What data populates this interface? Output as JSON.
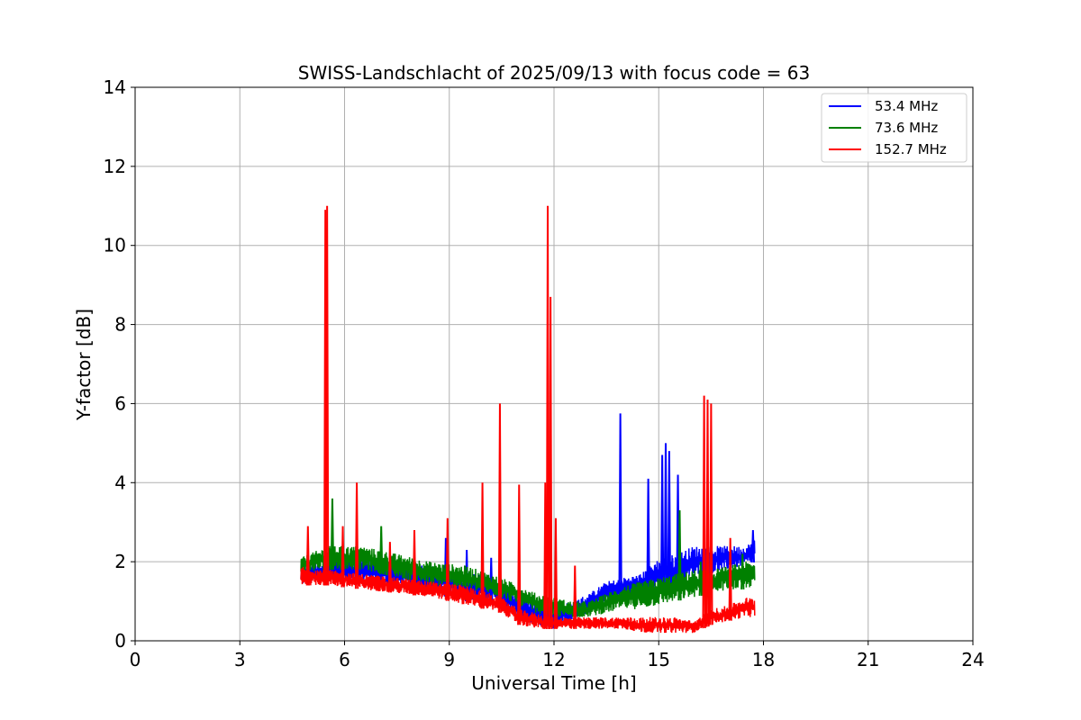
{
  "chart_data": {
    "type": "line",
    "title": "SWISS-Landschlacht of 2025/09/13 with focus code = 63",
    "xlabel": "Universal Time [h]",
    "ylabel": "Y-factor [dB]",
    "xlim": [
      0,
      24
    ],
    "ylim": [
      0,
      14
    ],
    "xticks": [
      0,
      3,
      6,
      9,
      12,
      15,
      18,
      21,
      24
    ],
    "yticks": [
      0,
      2,
      4,
      6,
      8,
      10,
      12,
      14
    ],
    "grid": true,
    "legend_position": "top-right",
    "series": [
      {
        "name": " 53.4 MHz",
        "color": "#0000ff",
        "band_x": [
          4.75,
          5.5,
          6.5,
          7.5,
          8.5,
          9.5,
          10.5,
          11.0,
          11.5,
          12.0,
          12.5,
          13.0,
          13.5,
          14.0,
          14.5,
          15.0,
          15.5,
          16.0,
          16.5,
          17.0,
          17.5,
          17.75
        ],
        "band_low": [
          1.4,
          1.5,
          1.5,
          1.4,
          1.2,
          1.0,
          0.9,
          0.5,
          0.4,
          0.3,
          0.5,
          0.7,
          1.0,
          1.1,
          1.2,
          1.3,
          1.4,
          1.6,
          1.7,
          1.8,
          1.9,
          2.0
        ],
        "band_high": [
          2.0,
          2.1,
          2.1,
          2.0,
          1.9,
          1.8,
          1.5,
          1.2,
          1.0,
          0.9,
          1.0,
          1.2,
          1.5,
          1.6,
          1.7,
          2.1,
          2.2,
          2.4,
          2.4,
          2.4,
          2.4,
          2.6
        ],
        "spikes": [
          {
            "x": 8.9,
            "y": 2.6
          },
          {
            "x": 9.5,
            "y": 2.3
          },
          {
            "x": 10.2,
            "y": 2.1
          },
          {
            "x": 13.9,
            "y": 5.75
          },
          {
            "x": 14.7,
            "y": 4.1
          },
          {
            "x": 15.1,
            "y": 4.7
          },
          {
            "x": 15.2,
            "y": 5.0
          },
          {
            "x": 15.3,
            "y": 4.8
          },
          {
            "x": 15.55,
            "y": 4.2
          },
          {
            "x": 17.7,
            "y": 2.8
          }
        ]
      },
      {
        "name": " 73.6 MHz",
        "color": "#008000",
        "band_x": [
          4.75,
          5.5,
          6.5,
          7.5,
          8.5,
          9.5,
          10.5,
          11.0,
          11.5,
          12.0,
          12.5,
          13.0,
          13.5,
          14.0,
          14.5,
          15.0,
          15.5,
          16.0,
          16.5,
          17.0,
          17.5,
          17.75
        ],
        "band_low": [
          1.7,
          1.8,
          1.8,
          1.6,
          1.4,
          1.3,
          1.1,
          0.9,
          0.7,
          0.6,
          0.6,
          0.6,
          0.7,
          0.8,
          0.8,
          0.9,
          1.0,
          1.1,
          1.2,
          1.3,
          1.3,
          1.4
        ],
        "band_high": [
          2.1,
          2.4,
          2.4,
          2.2,
          2.0,
          1.9,
          1.6,
          1.4,
          1.2,
          1.1,
          1.0,
          1.0,
          1.2,
          1.4,
          1.5,
          1.6,
          1.7,
          1.8,
          1.8,
          1.9,
          2.0,
          2.0
        ],
        "spikes": [
          {
            "x": 5.65,
            "y": 3.6
          },
          {
            "x": 7.05,
            "y": 2.9
          },
          {
            "x": 15.6,
            "y": 3.3
          },
          {
            "x": 16.2,
            "y": 2.0
          },
          {
            "x": 17.4,
            "y": 2.2
          }
        ]
      },
      {
        "name": "152.7 MHz",
        "color": "#ff0000",
        "band_x": [
          4.75,
          5.5,
          6.5,
          7.5,
          8.5,
          9.5,
          10.5,
          11.0,
          11.5,
          12.0,
          12.5,
          13.0,
          13.5,
          14.0,
          14.5,
          15.0,
          15.5,
          16.0,
          16.5,
          17.0,
          17.5,
          17.75
        ],
        "band_low": [
          1.4,
          1.4,
          1.3,
          1.2,
          1.1,
          0.9,
          0.7,
          0.4,
          0.3,
          0.3,
          0.3,
          0.3,
          0.3,
          0.3,
          0.2,
          0.2,
          0.2,
          0.2,
          0.4,
          0.5,
          0.6,
          0.6
        ],
        "band_high": [
          1.9,
          1.8,
          1.7,
          1.6,
          1.5,
          1.4,
          1.1,
          0.8,
          0.7,
          0.6,
          0.6,
          0.6,
          0.6,
          0.6,
          0.6,
          0.6,
          0.6,
          0.5,
          0.8,
          0.9,
          1.1,
          1.1
        ],
        "spikes": [
          {
            "x": 4.95,
            "y": 2.9
          },
          {
            "x": 5.45,
            "y": 10.9
          },
          {
            "x": 5.5,
            "y": 11.0
          },
          {
            "x": 5.95,
            "y": 2.9
          },
          {
            "x": 6.35,
            "y": 4.0
          },
          {
            "x": 7.3,
            "y": 2.5
          },
          {
            "x": 8.0,
            "y": 2.8
          },
          {
            "x": 8.95,
            "y": 3.1
          },
          {
            "x": 9.95,
            "y": 4.0
          },
          {
            "x": 10.45,
            "y": 6.0
          },
          {
            "x": 11.0,
            "y": 3.95
          },
          {
            "x": 11.75,
            "y": 4.0
          },
          {
            "x": 11.82,
            "y": 11.0
          },
          {
            "x": 11.9,
            "y": 8.7
          },
          {
            "x": 12.05,
            "y": 3.1
          },
          {
            "x": 12.6,
            "y": 1.9
          },
          {
            "x": 16.3,
            "y": 6.2
          },
          {
            "x": 16.4,
            "y": 6.1
          },
          {
            "x": 16.5,
            "y": 6.0
          },
          {
            "x": 17.05,
            "y": 2.6
          }
        ]
      }
    ]
  }
}
